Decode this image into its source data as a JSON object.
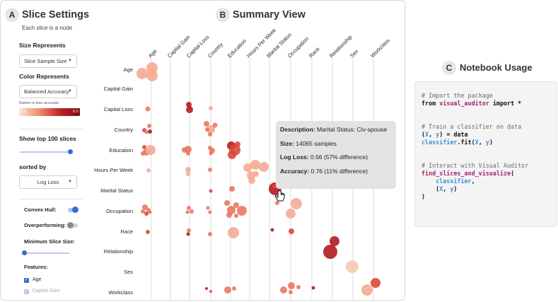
{
  "colors": {
    "accent": "#2f6fd1",
    "bubble_dark": "#b3141b",
    "bubble_mid": "#e05a47",
    "bubble_light": "#f4b9a5"
  },
  "left_panel": {
    "badge": "A",
    "title": "Slice Settings",
    "subtitle": "Each slice is a node",
    "size_represents_label": "Size Represents",
    "size_represents_value": "Slice Sample Size",
    "color_represents_label": "Color Represents",
    "color_represents_value": "Balanced Accuracy",
    "legend_caption": "Darker is less accurate",
    "legend_min": "1.0",
    "legend_max": "0.0",
    "show_top_label": "Show top 100 slices",
    "show_top_slider": 1.0,
    "sorted_by_label": "sorted by",
    "sorted_by_value": "Log Loss",
    "convex_hull_label": "Convex Hull:",
    "convex_hull_on": true,
    "overperforming_label": "Overperforming:",
    "overperforming_on": false,
    "min_slice_label": "Minimum Slice Size:",
    "min_slice_slider": 0.0,
    "features_label": "Features:",
    "features": [
      {
        "label": "Age",
        "checked": true
      },
      {
        "label": "Capital Gain",
        "checked": false
      }
    ]
  },
  "summary": {
    "badge": "B",
    "title": "Summary View",
    "columns": [
      "Age",
      "Capital Gain",
      "Capital Loss",
      "Country",
      "Education",
      "Hours Per Week",
      "Marital Status",
      "Occupation",
      "Race",
      "Relationship",
      "Sex",
      "Workclass"
    ],
    "rows": [
      "Age",
      "Capital Gain",
      "Capital Loss",
      "Country",
      "Education",
      "Hours Per Week",
      "Marital Status",
      "Occupation",
      "Race",
      "Relationship",
      "Sex",
      "Workclass"
    ]
  },
  "tooltip": {
    "description_label": "Description:",
    "description_value": "Marital Status: Civ-spouse",
    "size_label": "Size:",
    "size_value": "14065 samples",
    "logloss_label": "Log Loss:",
    "logloss_value": "0.56 (57% difference)",
    "accuracy_label": "Accuracy:",
    "accuracy_value": "0.76 (11% difference)"
  },
  "notebook": {
    "badge": "C",
    "title": "Notebook Usage",
    "code": {
      "l1": "# Import the package",
      "l2_kw": "from ",
      "l2_mod": "visual_auditor",
      "l2_rest": " import *",
      "l3": "# Train a classifier on data",
      "l4_a": "(",
      "l4_x": "X",
      "l4_c": ", ",
      "l4_y": "y",
      "l4_d": ") = data",
      "l5_obj": "classifier",
      "l5_a": ".fit(",
      "l5_x": "X",
      "l5_c": ", ",
      "l5_y": "y",
      "l5_d": ")",
      "l6": "# Interact with Visual Auditor",
      "l7_fn": "find_slices_and_visualize",
      "l7_p": "(",
      "l8_obj": "classifier",
      "l8_c": ",",
      "l9_a": "(",
      "l9_x": "X",
      "l9_c": ", ",
      "l9_y": "y",
      "l9_d": ")",
      "l10": ")"
    }
  }
}
